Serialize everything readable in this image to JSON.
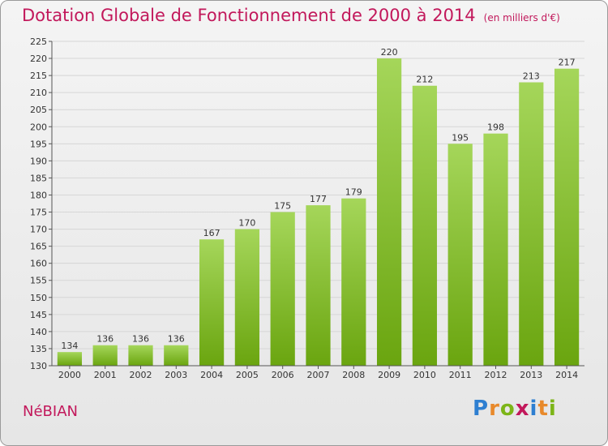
{
  "chart_data": {
    "type": "bar",
    "title": "Dotation Globale de Fonctionnement de 2000 à 2014",
    "subtitle": "(en milliers d'€)",
    "categories": [
      "2000",
      "2001",
      "2002",
      "2003",
      "2004",
      "2005",
      "2006",
      "2007",
      "2008",
      "2009",
      "2010",
      "2011",
      "2012",
      "2013",
      "2014"
    ],
    "values": [
      134,
      136,
      136,
      136,
      167,
      170,
      175,
      177,
      179,
      220,
      212,
      195,
      198,
      213,
      217
    ],
    "ylim": [
      130,
      225
    ],
    "yticks": [
      130,
      135,
      140,
      145,
      150,
      155,
      160,
      165,
      170,
      175,
      180,
      185,
      190,
      195,
      200,
      205,
      210,
      215,
      220,
      225
    ],
    "grid": true,
    "bar_color": "#7cb518",
    "bar_color_light": "#a5d65a"
  },
  "commune": "NéBIAN",
  "logo": {
    "text": "Proxiti"
  },
  "colors": {
    "title": "#c2185b",
    "axis": "#333333"
  }
}
